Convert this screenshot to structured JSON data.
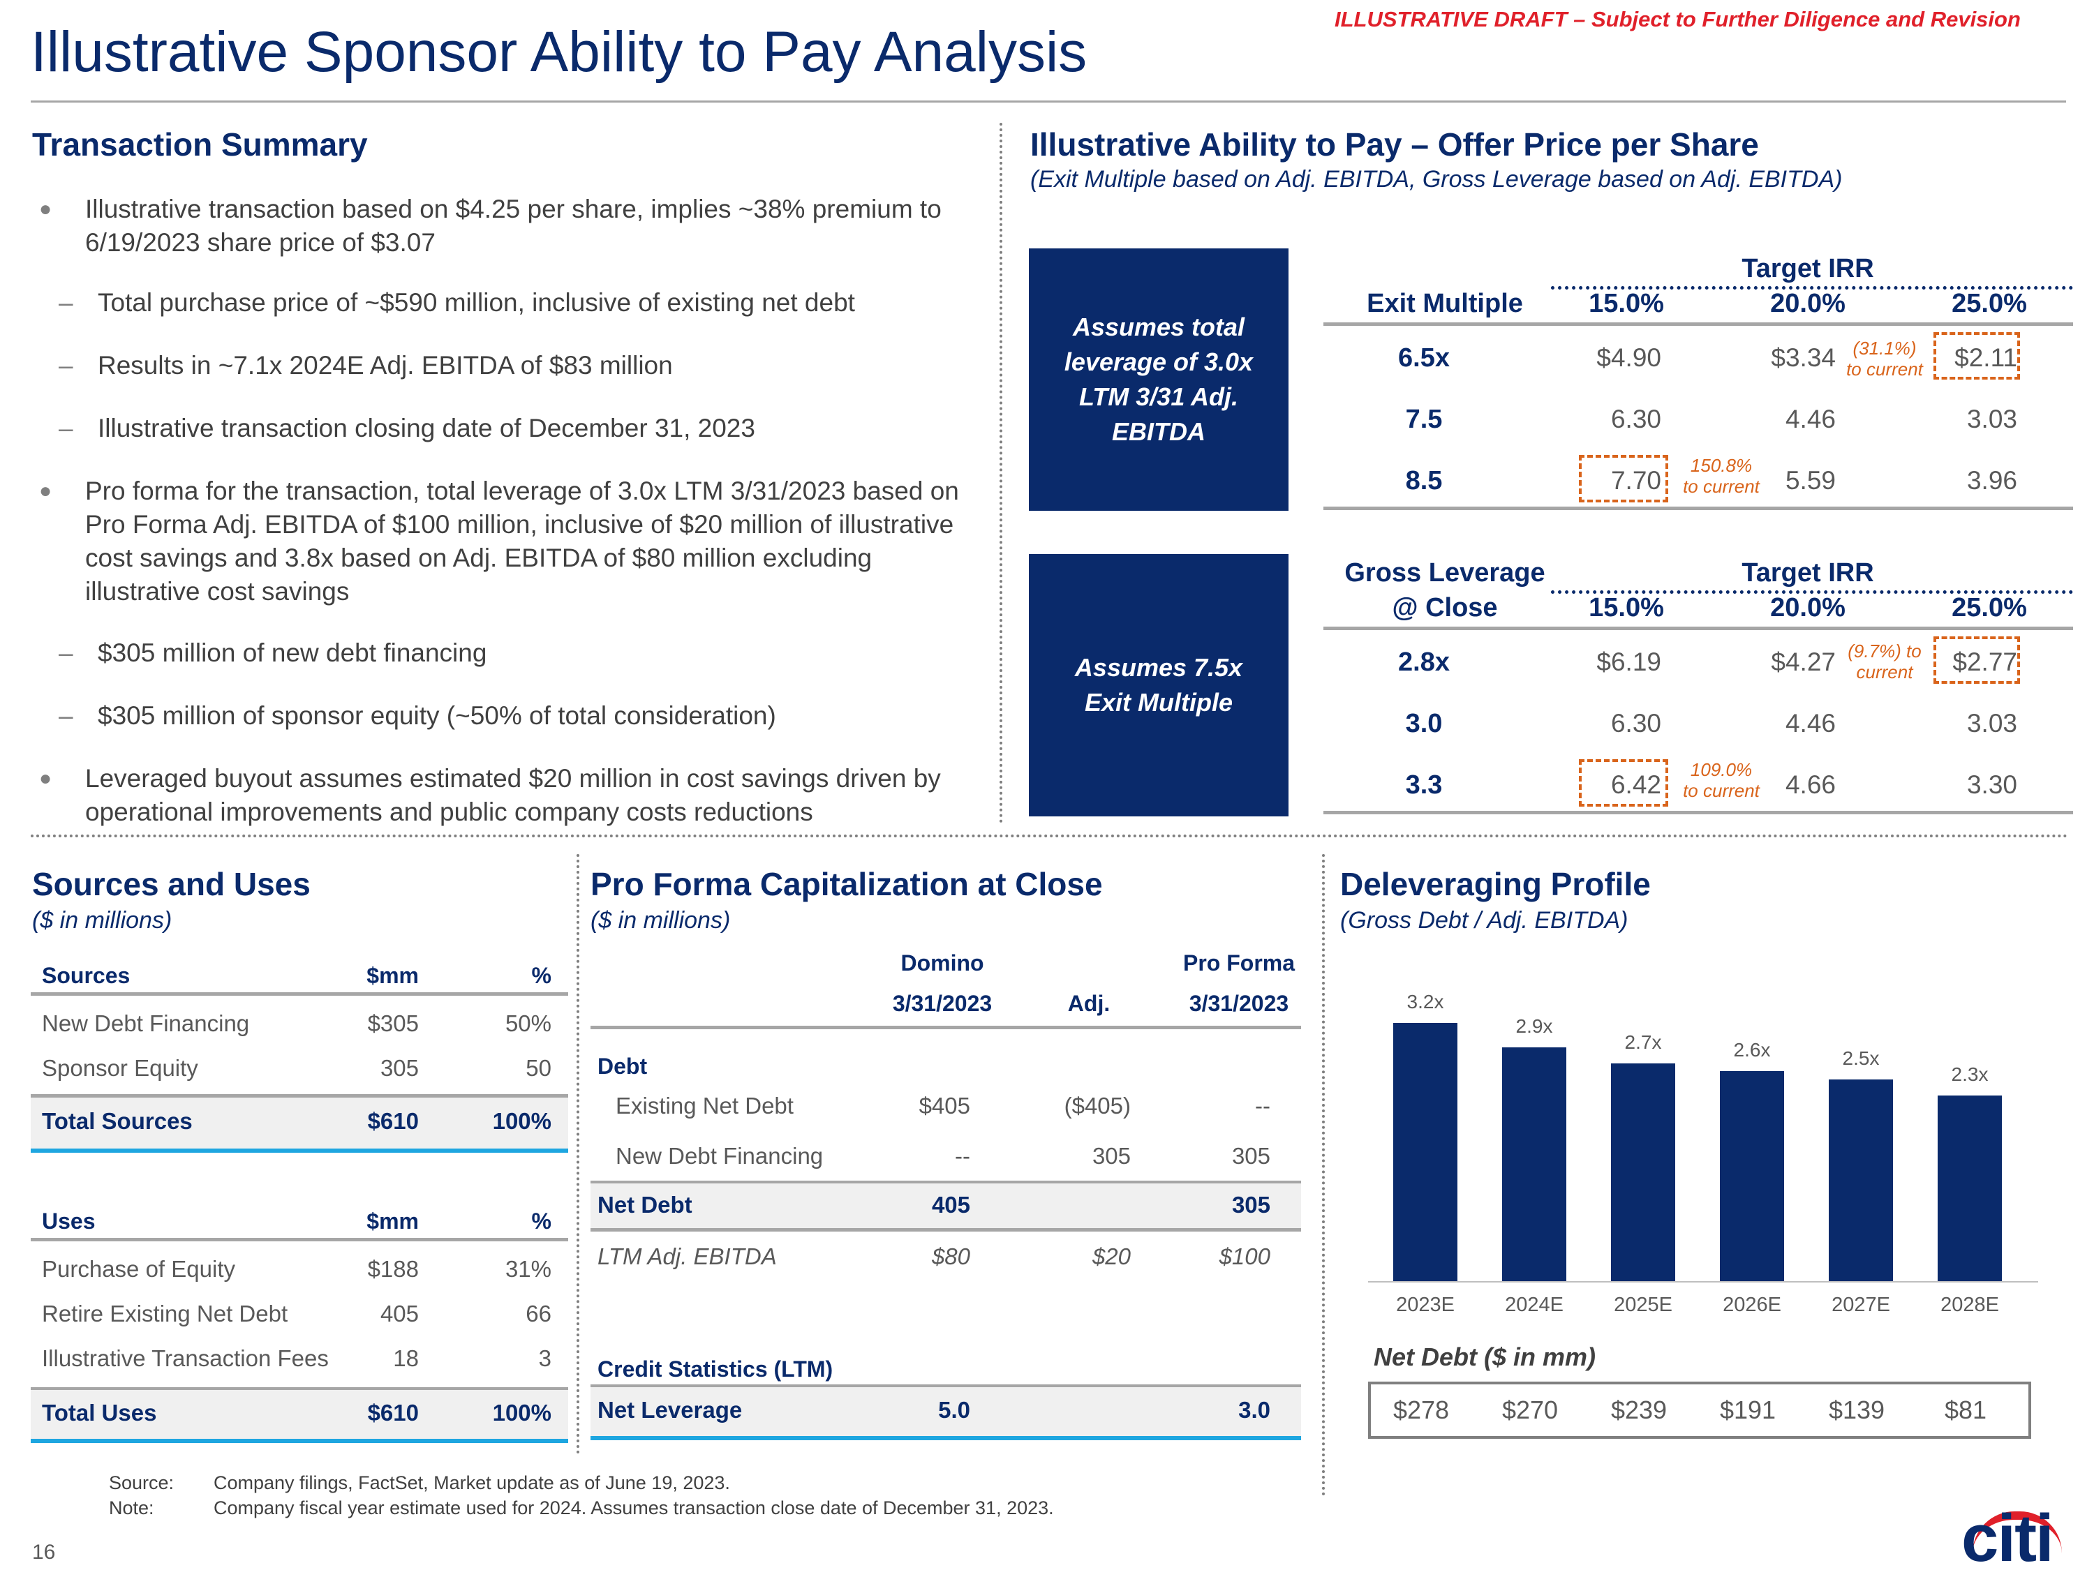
{
  "header": {
    "title": "Illustrative Sponsor Ability to Pay Analysis",
    "draft_label": "ILLUSTRATIVE DRAFT – Subject to Further Diligence and Revision"
  },
  "transaction_summary": {
    "heading": "Transaction Summary",
    "bullets": [
      "Illustrative transaction based on $4.25 per share, implies ~38% premium to 6/19/2023 share price of $3.07",
      "Pro forma for the transaction, total leverage of 3.0x LTM 3/31/2023 based on Pro Forma Adj. EBITDA of $100 million, inclusive of $20 million of illustrative cost savings and 3.8x based on Adj. EBITDA of $80 million excluding illustrative cost savings",
      "Leveraged buyout assumes estimated $20 million in cost savings driven by operational improvements and public company costs reductions"
    ],
    "sub_bullets_1": [
      "Total purchase price of ~$590 million, inclusive of existing net debt",
      "Results in ~7.1x 2024E Adj. EBITDA of $83 million",
      "Illustrative transaction closing date of December 31, 2023"
    ],
    "sub_bullets_2": [
      "$305 million of new debt financing",
      "$305 million of sponsor equity (~50% of total consideration)"
    ]
  },
  "ability_to_pay": {
    "heading": "Illustrative Ability to Pay – Offer Price per Share",
    "subheading": "(Exit Multiple based on Adj. EBITDA, Gross Leverage based on Adj. EBITDA)",
    "table1": {
      "box_text": "Assumes total leverage of 3.0x LTM 3/31 Adj. EBITDA",
      "row_header": "Exit Multiple",
      "group_header": "Target IRR",
      "cols": [
        "15.0%",
        "20.0%",
        "25.0%"
      ],
      "rows": [
        {
          "label": "6.5x",
          "values": [
            "$4.90",
            "$3.34",
            "$2.11"
          ]
        },
        {
          "label": "7.5",
          "values": [
            "6.30",
            "4.46",
            "3.03"
          ]
        },
        {
          "label": "8.5",
          "values": [
            "7.70",
            "5.59",
            "3.96"
          ]
        }
      ],
      "note_low": "(31.1%)",
      "note_low_2": "to current",
      "note_high": "150.8%",
      "note_high_2": "to current"
    },
    "table2": {
      "box_text": "Assumes 7.5x Exit Multiple",
      "row_header_1": "Gross Leverage",
      "row_header_2": "@ Close",
      "group_header": "Target IRR",
      "cols": [
        "15.0%",
        "20.0%",
        "25.0%"
      ],
      "rows": [
        {
          "label": "2.8x",
          "values": [
            "$6.19",
            "$4.27",
            "$2.77"
          ]
        },
        {
          "label": "3.0",
          "values": [
            "6.30",
            "4.46",
            "3.03"
          ]
        },
        {
          "label": "3.3",
          "values": [
            "6.42",
            "4.66",
            "3.30"
          ]
        }
      ],
      "note_low": "(9.7%) to",
      "note_low_2": "current",
      "note_high": "109.0%",
      "note_high_2": "to current"
    }
  },
  "sources_uses": {
    "heading": "Sources and Uses",
    "subheading": "($ in millions)",
    "sources_header": [
      "Sources",
      "$mm",
      "%"
    ],
    "sources": [
      {
        "label": "New Debt Financing",
        "amount": "$305",
        "pct": "50%"
      },
      {
        "label": "Sponsor Equity",
        "amount": "305",
        "pct": "50"
      }
    ],
    "sources_total": {
      "label": "Total Sources",
      "amount": "$610",
      "pct": "100%"
    },
    "uses_header": [
      "Uses",
      "$mm",
      "%"
    ],
    "uses": [
      {
        "label": "Purchase of Equity",
        "amount": "$188",
        "pct": "31%"
      },
      {
        "label": "Retire Existing Net Debt",
        "amount": "405",
        "pct": "66"
      },
      {
        "label": "Illustrative Transaction Fees",
        "amount": "18",
        "pct": "3"
      }
    ],
    "uses_total": {
      "label": "Total Uses",
      "amount": "$610",
      "pct": "100%"
    }
  },
  "pro_forma_cap": {
    "heading": "Pro Forma Capitalization at Close",
    "subheading": "($ in millions)",
    "col_headers_top": [
      "Domino",
      "",
      "Pro Forma"
    ],
    "col_headers": [
      "3/31/2023",
      "Adj.",
      "3/31/2023"
    ],
    "debt_label": "Debt",
    "rows": [
      {
        "label": "Existing Net Debt",
        "values": [
          "$405",
          "($405)",
          "--"
        ]
      },
      {
        "label": "New Debt Financing",
        "values": [
          "--",
          "305",
          "305"
        ]
      }
    ],
    "net_debt": {
      "label": "Net Debt",
      "values": [
        "405",
        "",
        "305"
      ]
    },
    "ebitda": {
      "label": "LTM Adj. EBITDA",
      "values": [
        "$80",
        "$20",
        "$100"
      ]
    },
    "credit_stats_label": "Credit Statistics (LTM)",
    "net_leverage": {
      "label": "Net Leverage",
      "values": [
        "5.0",
        "",
        "3.0"
      ]
    }
  },
  "deleveraging": {
    "heading": "Deleveraging Profile",
    "subheading": "(Gross Debt / Adj. EBITDA)",
    "net_debt_label": "Net Debt ($ in mm)",
    "net_debt_values": [
      "$278",
      "$270",
      "$239",
      "$191",
      "$139",
      "$81"
    ]
  },
  "chart_data": {
    "type": "bar",
    "title": "Deleveraging Profile",
    "subtitle": "(Gross Debt / Adj. EBITDA)",
    "categories": [
      "2023E",
      "2024E",
      "2025E",
      "2026E",
      "2027E",
      "2028E"
    ],
    "values": [
      3.2,
      2.9,
      2.7,
      2.6,
      2.5,
      2.3
    ],
    "data_labels": [
      "3.2x",
      "2.9x",
      "2.7x",
      "2.6x",
      "2.5x",
      "2.3x"
    ],
    "ylim": [
      0,
      3.2
    ],
    "xlabel": "",
    "ylabel": "",
    "grid": false,
    "colors": [
      "#0a2a6b"
    ]
  },
  "footer": {
    "source_label": "Source:",
    "source_text": "Company filings, FactSet, Market update as of June 19, 2023.",
    "note_label": "Note:",
    "note_text": "Company fiscal year estimate used for 2024. Assumes transaction close date of December 31, 2023.",
    "page_number": "16",
    "logo_text": "citi"
  },
  "colors": {
    "navy": "#0a2a6b",
    "accent_orange": "#d9641b",
    "draft_red": "#e0202a",
    "rule_blue": "#1ea6e0"
  }
}
